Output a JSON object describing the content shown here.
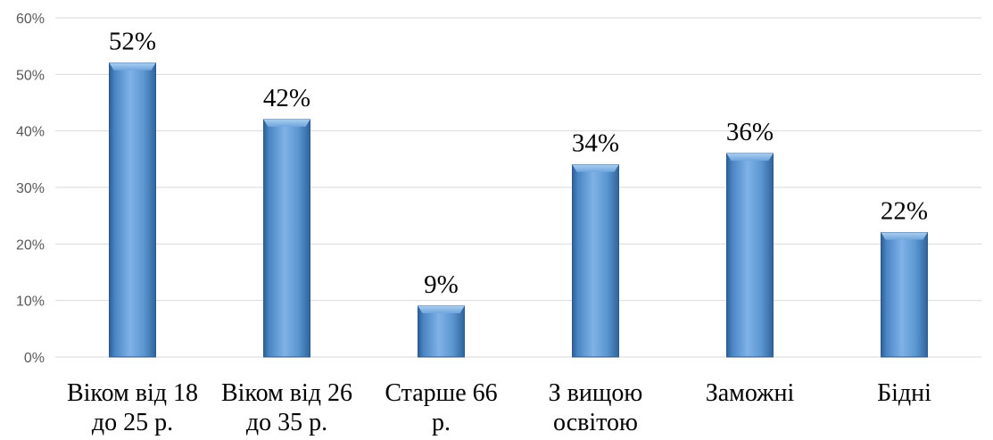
{
  "chart_data": {
    "type": "bar",
    "categories": [
      [
        "Віком від 18",
        "до 25 р."
      ],
      [
        "Віком від 26",
        "до 35 р."
      ],
      [
        "Старше 66",
        "р."
      ],
      [
        "З вищою",
        "освітою"
      ],
      [
        "Заможні"
      ],
      [
        "Бідні"
      ]
    ],
    "values": [
      52,
      42,
      9,
      34,
      36,
      22
    ],
    "data_labels": [
      "52%",
      "42%",
      "9%",
      "34%",
      "36%",
      "22%"
    ],
    "y_ticks": [
      "0%",
      "10%",
      "20%",
      "30%",
      "40%",
      "50%",
      "60%"
    ],
    "ylim": [
      0,
      60
    ],
    "grid": true,
    "legend": "none",
    "bar_color": "#5b9bd5"
  }
}
